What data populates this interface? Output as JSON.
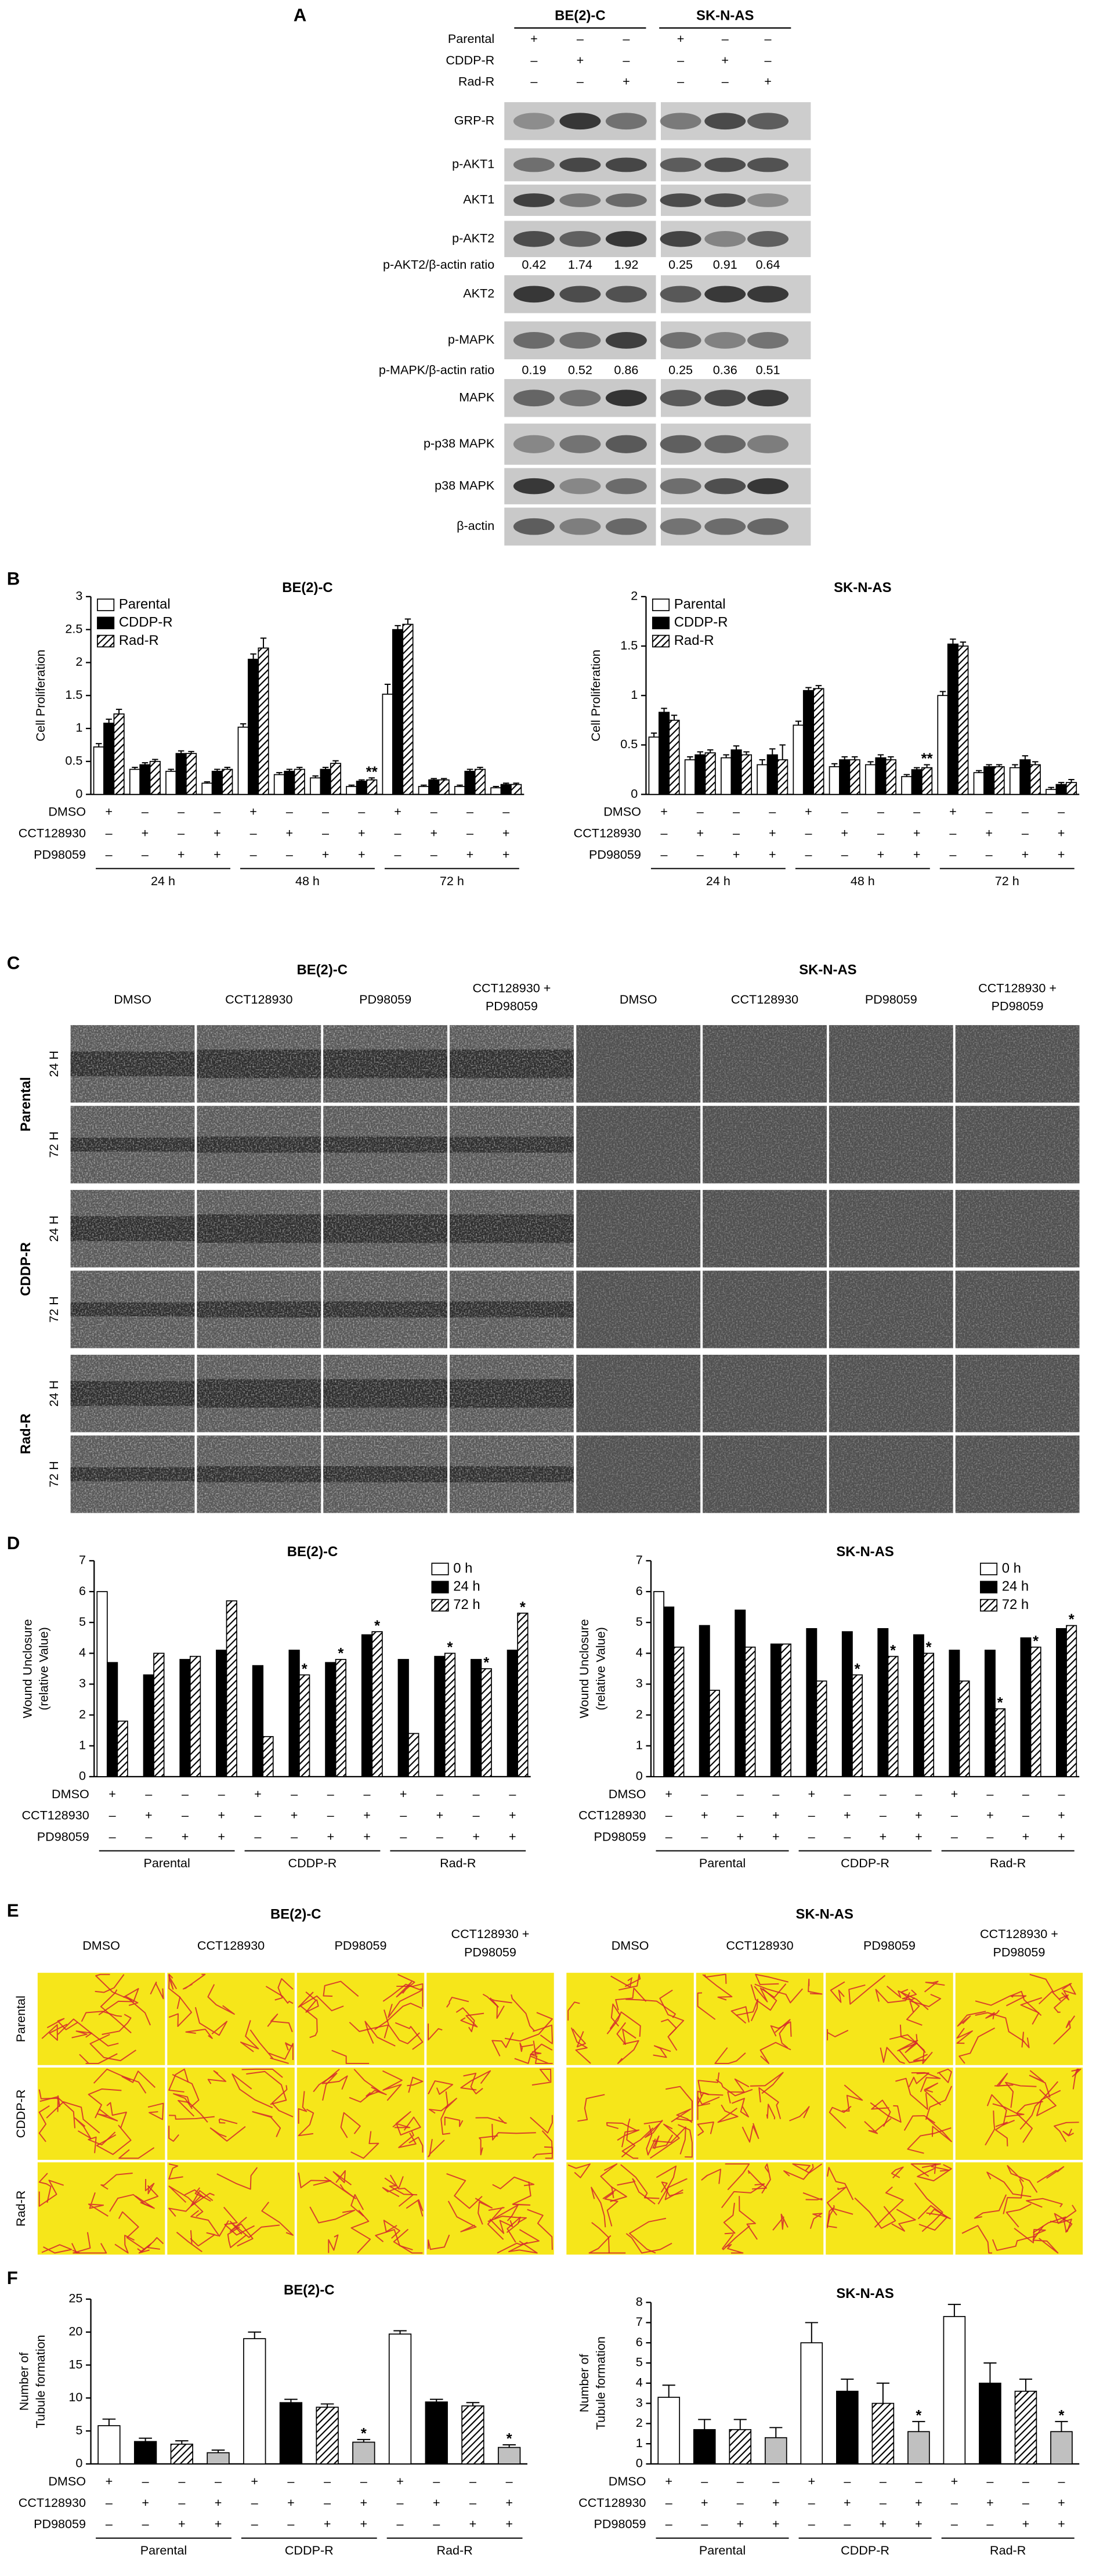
{
  "panel_labels": [
    "A",
    "B",
    "C",
    "D",
    "E",
    "F"
  ],
  "blot": {
    "cell_lines": [
      "BE(2)-C",
      "SK-N-AS"
    ],
    "conditions": [
      {
        "name": "Parental",
        "signs": [
          "+",
          "–",
          "–",
          "+",
          "–",
          "–"
        ]
      },
      {
        "name": "CDDP-R",
        "signs": [
          "–",
          "+",
          "–",
          "–",
          "+",
          "–"
        ]
      },
      {
        "name": "Rad-R",
        "signs": [
          "–",
          "–",
          "+",
          "–",
          "–",
          "+"
        ]
      }
    ],
    "rows": [
      "GRP-R",
      "p-AKT1",
      "AKT1",
      "p-AKT2",
      "AKT2",
      "p-MAPK",
      "MAPK",
      "p-p38 MAPK",
      "p38 MAPK",
      "β-actin"
    ],
    "ratios": [
      {
        "name": "p-AKT2/β-actin ratio",
        "values": [
          0.42,
          1.74,
          1.92,
          0.25,
          0.91,
          0.64
        ]
      },
      {
        "name": "p-MAPK/β-actin ratio",
        "values": [
          0.19,
          0.52,
          0.86,
          0.25,
          0.36,
          0.51
        ]
      }
    ]
  },
  "wound_assay": {
    "cell_lines": [
      "BE(2)-C",
      "SK-N-AS"
    ],
    "columns": [
      [
        "DMSO"
      ],
      [
        "CCT128930"
      ],
      [
        "PD98059"
      ],
      [
        "CCT128930 +",
        "PD98059"
      ]
    ],
    "groups": [
      "Parental",
      "CDDP-R",
      "Rad-R"
    ],
    "times": [
      "24 H",
      "72 H"
    ]
  },
  "tube_assay": {
    "cell_lines": [
      "BE(2)-C",
      "SK-N-AS"
    ],
    "columns": [
      [
        "DMSO"
      ],
      [
        "CCT128930"
      ],
      [
        "PD98059"
      ],
      [
        "CCT128930 +",
        "PD98059"
      ]
    ],
    "rows": [
      "Parental",
      "CDDP-R",
      "Rad-R"
    ]
  },
  "chart_data": [
    {
      "type": "bar",
      "title": "BE(2)-C",
      "ylabel": [
        "Cell Proliferation"
      ],
      "ylim": [
        0,
        3
      ],
      "yticks": [
        0,
        0.5,
        1,
        1.5,
        2,
        2.5,
        3
      ],
      "legend": "upper left",
      "series": [
        {
          "name": "Parental",
          "color": "#ffffff",
          "values": [
            0.72,
            0.38,
            0.35,
            0.17,
            1.02,
            0.3,
            0.25,
            0.12,
            1.52,
            0.12,
            0.12,
            0.1
          ],
          "errors": [
            0.05,
            0.03,
            0.03,
            0.02,
            0.05,
            0.03,
            0.03,
            0.02,
            0.15,
            0.02,
            0.02,
            0.02
          ]
        },
        {
          "name": "CDDP-R",
          "color": "#000000",
          "values": [
            1.08,
            0.45,
            0.62,
            0.35,
            2.05,
            0.35,
            0.38,
            0.2,
            2.5,
            0.22,
            0.35,
            0.15
          ],
          "errors": [
            0.06,
            0.03,
            0.04,
            0.03,
            0.08,
            0.03,
            0.03,
            0.02,
            0.06,
            0.02,
            0.03,
            0.02
          ]
        },
        {
          "name": "Rad-R",
          "color": "#ffffff",
          "hatch": true,
          "values": [
            1.22,
            0.5,
            0.62,
            0.38,
            2.22,
            0.38,
            0.47,
            0.22,
            2.58,
            0.22,
            0.38,
            0.15
          ],
          "errors": [
            0.07,
            0.03,
            0.03,
            0.03,
            0.15,
            0.03,
            0.04,
            0.03,
            0.08,
            0.02,
            0.03,
            0.02
          ],
          "stars": [
            null,
            null,
            null,
            null,
            null,
            null,
            null,
            "**",
            null,
            null,
            null,
            null
          ]
        }
      ],
      "treatments": [
        {
          "name": "DMSO",
          "signs": [
            "+",
            "–",
            "–",
            "–",
            "+",
            "–",
            "–",
            "–",
            "+",
            "–",
            "–",
            "–"
          ]
        },
        {
          "name": "CCT128930",
          "signs": [
            "–",
            "+",
            "–",
            "+",
            "–",
            "+",
            "–",
            "+",
            "–",
            "+",
            "–",
            "+"
          ]
        },
        {
          "name": "PD98059",
          "signs": [
            "–",
            "–",
            "+",
            "+",
            "–",
            "–",
            "+",
            "+",
            "–",
            "–",
            "+",
            "+"
          ]
        }
      ],
      "groups": [
        "24 h",
        "48 h",
        "72 h"
      ]
    },
    {
      "type": "bar",
      "title": "SK-N-AS",
      "ylabel": [
        "Cell Proliferation"
      ],
      "ylim": [
        0,
        2
      ],
      "yticks": [
        0,
        0.5,
        1,
        1.5,
        2
      ],
      "legend": "upper left",
      "series": [
        {
          "name": "Parental",
          "color": "#ffffff",
          "values": [
            0.58,
            0.35,
            0.37,
            0.3,
            0.7,
            0.28,
            0.3,
            0.18,
            1.0,
            0.22,
            0.27,
            0.05
          ],
          "errors": [
            0.04,
            0.03,
            0.03,
            0.05,
            0.04,
            0.03,
            0.03,
            0.02,
            0.04,
            0.02,
            0.03,
            0.02
          ]
        },
        {
          "name": "CDDP-R",
          "color": "#000000",
          "values": [
            0.83,
            0.4,
            0.45,
            0.4,
            1.05,
            0.35,
            0.37,
            0.25,
            1.52,
            0.28,
            0.35,
            0.1
          ],
          "errors": [
            0.04,
            0.03,
            0.04,
            0.06,
            0.03,
            0.03,
            0.03,
            0.02,
            0.05,
            0.02,
            0.04,
            0.02
          ]
        },
        {
          "name": "Rad-R",
          "color": "#ffffff",
          "hatch": true,
          "values": [
            0.75,
            0.42,
            0.4,
            0.35,
            1.07,
            0.35,
            0.35,
            0.27,
            1.5,
            0.28,
            0.3,
            0.12
          ],
          "errors": [
            0.05,
            0.03,
            0.03,
            0.15,
            0.03,
            0.03,
            0.03,
            0.03,
            0.04,
            0.02,
            0.03,
            0.03
          ],
          "stars": [
            null,
            null,
            null,
            null,
            null,
            null,
            null,
            "**",
            null,
            null,
            null,
            null
          ]
        }
      ],
      "treatments": [
        {
          "name": "DMSO",
          "signs": [
            "+",
            "–",
            "–",
            "–",
            "+",
            "–",
            "–",
            "–",
            "+",
            "–",
            "–",
            "–"
          ]
        },
        {
          "name": "CCT128930",
          "signs": [
            "–",
            "+",
            "–",
            "+",
            "–",
            "+",
            "–",
            "+",
            "–",
            "+",
            "–",
            "+"
          ]
        },
        {
          "name": "PD98059",
          "signs": [
            "–",
            "–",
            "+",
            "+",
            "–",
            "–",
            "+",
            "+",
            "–",
            "–",
            "+",
            "+"
          ]
        }
      ],
      "groups": [
        "24 h",
        "48 h",
        "72 h"
      ]
    },
    {
      "type": "bar",
      "title": "BE(2)-C",
      "ylabel": [
        "Wound Unclosure",
        "(relative Value)"
      ],
      "ylim": [
        0,
        7
      ],
      "yticks": [
        0,
        1,
        2,
        3,
        4,
        5,
        6,
        7
      ],
      "legend": "upper right",
      "series": [
        {
          "name": "0 h",
          "color": "#ffffff",
          "values": [
            6.0,
            null,
            null,
            null,
            null,
            null,
            null,
            null,
            null,
            null,
            null,
            null
          ]
        },
        {
          "name": "24 h",
          "color": "#000000",
          "values": [
            3.7,
            3.3,
            3.8,
            4.1,
            3.6,
            4.1,
            3.7,
            4.6,
            3.8,
            3.9,
            3.8,
            4.1
          ]
        },
        {
          "name": "72 h",
          "color": "#ffffff",
          "hatch": true,
          "values": [
            1.8,
            4.0,
            3.9,
            5.7,
            1.3,
            3.3,
            3.8,
            4.7,
            1.4,
            4.0,
            3.5,
            5.3
          ],
          "stars": [
            null,
            null,
            null,
            null,
            null,
            "*",
            "*",
            "*",
            null,
            "*",
            "*",
            "*"
          ]
        }
      ],
      "treatments": [
        {
          "name": "DMSO",
          "signs": [
            "+",
            "–",
            "–",
            "–",
            "+",
            "–",
            "–",
            "–",
            "+",
            "–",
            "–",
            "–"
          ]
        },
        {
          "name": "CCT128930",
          "signs": [
            "–",
            "+",
            "–",
            "+",
            "–",
            "+",
            "–",
            "+",
            "–",
            "+",
            "–",
            "+"
          ]
        },
        {
          "name": "PD98059",
          "signs": [
            "–",
            "–",
            "+",
            "+",
            "–",
            "–",
            "+",
            "+",
            "–",
            "–",
            "+",
            "+"
          ]
        }
      ],
      "groups": [
        "Parental",
        "CDDP-R",
        "Rad-R"
      ]
    },
    {
      "type": "bar",
      "title": "SK-N-AS",
      "ylabel": [
        "Wound Unclosure",
        "(relative Value)"
      ],
      "ylim": [
        0,
        7
      ],
      "yticks": [
        0,
        1,
        2,
        3,
        4,
        5,
        6,
        7
      ],
      "legend": "upper right",
      "series": [
        {
          "name": "0 h",
          "color": "#ffffff",
          "values": [
            6.0,
            null,
            null,
            null,
            null,
            null,
            null,
            null,
            null,
            null,
            null,
            null
          ]
        },
        {
          "name": "24 h",
          "color": "#000000",
          "values": [
            5.5,
            4.9,
            5.4,
            4.3,
            4.8,
            4.7,
            4.8,
            4.6,
            4.1,
            4.1,
            4.5,
            4.8
          ]
        },
        {
          "name": "72 h",
          "color": "#ffffff",
          "hatch": true,
          "values": [
            4.2,
            2.8,
            4.2,
            4.3,
            3.1,
            3.3,
            3.9,
            4.0,
            3.1,
            2.2,
            4.2,
            4.9
          ],
          "stars": [
            null,
            null,
            null,
            null,
            null,
            "*",
            "*",
            "*",
            null,
            "*",
            "*",
            "*"
          ]
        }
      ],
      "treatments": [
        {
          "name": "DMSO",
          "signs": [
            "+",
            "–",
            "–",
            "–",
            "+",
            "–",
            "–",
            "–",
            "+",
            "–",
            "–",
            "–"
          ]
        },
        {
          "name": "CCT128930",
          "signs": [
            "–",
            "+",
            "–",
            "+",
            "–",
            "+",
            "–",
            "+",
            "–",
            "+",
            "–",
            "+"
          ]
        },
        {
          "name": "PD98059",
          "signs": [
            "–",
            "–",
            "+",
            "+",
            "–",
            "–",
            "+",
            "+",
            "–",
            "–",
            "+",
            "+"
          ]
        }
      ],
      "groups": [
        "Parental",
        "CDDP-R",
        "Rad-R"
      ]
    },
    {
      "type": "bar",
      "title": "BE(2)-C",
      "ylabel": [
        "Number of",
        "Tubule formation"
      ],
      "ylim": [
        0,
        25
      ],
      "yticks": [
        0,
        5,
        10,
        15,
        20,
        25
      ],
      "values": [
        5.8,
        3.4,
        3.0,
        1.7,
        19.0,
        9.3,
        8.6,
        3.3,
        19.7,
        9.4,
        8.8,
        2.5
      ],
      "errors": [
        1.0,
        0.5,
        0.5,
        0.4,
        1.0,
        0.5,
        0.5,
        0.4,
        0.5,
        0.4,
        0.5,
        0.4
      ],
      "colors": [
        "#ffffff",
        "#000000",
        "#ffffff",
        "#c0c0c0",
        "#ffffff",
        "#000000",
        "#ffffff",
        "#c0c0c0",
        "#ffffff",
        "#000000",
        "#ffffff",
        "#c0c0c0"
      ],
      "hatch": [
        false,
        false,
        true,
        false,
        false,
        false,
        true,
        false,
        false,
        false,
        true,
        false
      ],
      "stars": [
        null,
        null,
        null,
        null,
        null,
        null,
        null,
        "*",
        null,
        null,
        null,
        "*"
      ],
      "treatments": [
        {
          "name": "DMSO",
          "signs": [
            "+",
            "–",
            "–",
            "–",
            "+",
            "–",
            "–",
            "–",
            "+",
            "–",
            "–",
            "–"
          ]
        },
        {
          "name": "CCT128930",
          "signs": [
            "–",
            "+",
            "–",
            "+",
            "–",
            "+",
            "–",
            "+",
            "–",
            "+",
            "–",
            "+"
          ]
        },
        {
          "name": "PD98059",
          "signs": [
            "–",
            "–",
            "+",
            "+",
            "–",
            "–",
            "+",
            "+",
            "–",
            "–",
            "+",
            "+"
          ]
        }
      ],
      "groups": [
        "Parental",
        "CDDP-R",
        "Rad-R"
      ]
    },
    {
      "type": "bar",
      "title": "SK-N-AS",
      "ylabel": [
        "Number of",
        "Tubule formation"
      ],
      "ylim": [
        0,
        8
      ],
      "yticks": [
        0,
        1,
        2,
        3,
        4,
        5,
        6,
        7,
        8
      ],
      "values": [
        3.3,
        1.7,
        1.7,
        1.3,
        6.0,
        3.6,
        3.0,
        1.6,
        7.3,
        4.0,
        3.6,
        1.6
      ],
      "errors": [
        0.6,
        0.5,
        0.5,
        0.5,
        1.0,
        0.6,
        1.0,
        0.5,
        0.6,
        1.0,
        0.6,
        0.5
      ],
      "colors": [
        "#ffffff",
        "#000000",
        "#ffffff",
        "#c0c0c0",
        "#ffffff",
        "#000000",
        "#ffffff",
        "#c0c0c0",
        "#ffffff",
        "#000000",
        "#ffffff",
        "#c0c0c0"
      ],
      "hatch": [
        false,
        false,
        true,
        false,
        false,
        false,
        true,
        false,
        false,
        false,
        true,
        false
      ],
      "stars": [
        null,
        null,
        null,
        null,
        null,
        null,
        null,
        "*",
        null,
        null,
        null,
        "*"
      ],
      "treatments": [
        {
          "name": "DMSO",
          "signs": [
            "+",
            "–",
            "–",
            "–",
            "+",
            "–",
            "–",
            "–",
            "+",
            "–",
            "–",
            "–"
          ]
        },
        {
          "name": "CCT128930",
          "signs": [
            "–",
            "+",
            "–",
            "+",
            "–",
            "+",
            "–",
            "+",
            "–",
            "+",
            "–",
            "+"
          ]
        },
        {
          "name": "PD98059",
          "signs": [
            "–",
            "–",
            "+",
            "+",
            "–",
            "–",
            "+",
            "+",
            "–",
            "–",
            "+",
            "+"
          ]
        }
      ],
      "groups": [
        "Parental",
        "CDDP-R",
        "Rad-R"
      ]
    }
  ]
}
